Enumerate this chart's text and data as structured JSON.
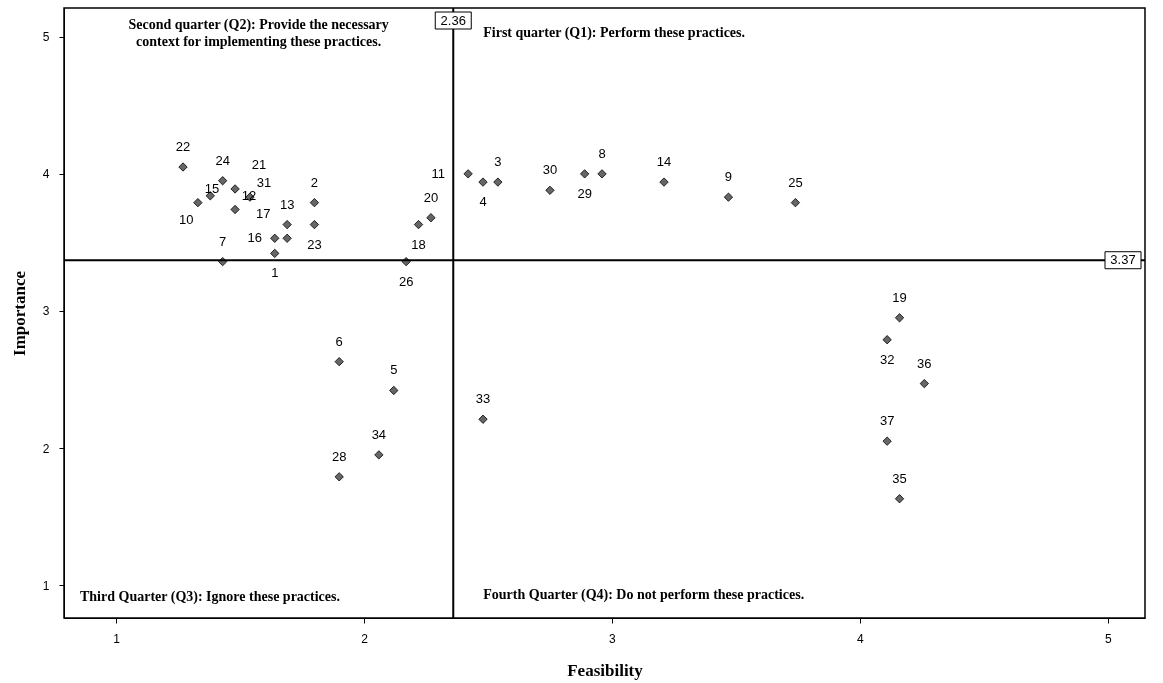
{
  "chart_data": {
    "type": "scatter",
    "xlabel": "Feasibility",
    "ylabel": "Importance",
    "xlim": [
      0.79,
      5.15
    ],
    "ylim": [
      0.76,
      5.21
    ],
    "xticks": [
      1,
      2,
      3,
      4,
      5
    ],
    "yticks": [
      1,
      2,
      3,
      4,
      5
    ],
    "grid": false,
    "marker": "diamond",
    "series": [
      {
        "color": "#666666",
        "x": [
          1.64,
          1.8,
          2.54,
          2.48,
          2.12,
          1.9,
          1.43,
          2.96,
          3.47,
          1.38,
          2.42,
          1.48,
          1.69,
          3.21,
          1.33,
          1.64,
          1.69,
          2.22,
          4.16,
          2.27,
          1.48,
          1.27,
          1.8,
          1.43,
          3.74,
          2.17,
          1.9,
          2.89,
          2.75,
          1.54,
          4.11,
          2.48,
          2.06,
          4.16,
          4.26,
          4.11
        ],
        "values": [
          3.42,
          3.79,
          3.94,
          3.94,
          2.42,
          2.63,
          3.36,
          4.0,
          3.83,
          3.84,
          4.0,
          3.74,
          3.63,
          3.94,
          3.79,
          3.53,
          3.53,
          3.63,
          2.95,
          3.68,
          3.89,
          4.05,
          3.63,
          3.95,
          3.79,
          3.36,
          1.79,
          4.0,
          3.88,
          3.83,
          2.79,
          2.21,
          1.95,
          1.63,
          2.47,
          2.05
        ]
      }
    ],
    "ref_lines": [
      {
        "axis": "x",
        "value": 2.36,
        "label": "2.36"
      },
      {
        "axis": "y",
        "value": 3.37,
        "label": "3.37"
      }
    ],
    "annotations": [
      "Second quarter (Q2): Provide the necessary context for implementing these practices.",
      "First quarter (Q1): Perform these practices.",
      "Third Quarter (Q3): Ignore these practices.",
      "Fourth Quarter (Q4): Do not perform these practices.",
      {
        "text": "1",
        "x": 1.64,
        "y": 3.42
      },
      {
        "text": "2",
        "x": 1.8,
        "y": 3.79
      },
      {
        "text": "3",
        "x": 2.54,
        "y": 3.94
      },
      {
        "text": "4",
        "x": 2.48,
        "y": 3.94
      },
      {
        "text": "5",
        "x": 2.12,
        "y": 2.42
      },
      {
        "text": "6",
        "x": 1.9,
        "y": 2.63
      },
      {
        "text": "7",
        "x": 1.43,
        "y": 3.36
      },
      {
        "text": "8",
        "x": 2.96,
        "y": 4.0
      },
      {
        "text": "9",
        "x": 3.47,
        "y": 3.83
      },
      {
        "text": "10",
        "x": 1.38,
        "y": 3.84
      },
      {
        "text": "11",
        "x": 2.42,
        "y": 4.0
      },
      {
        "text": "12",
        "x": 1.48,
        "y": 3.74
      },
      {
        "text": "13",
        "x": 1.69,
        "y": 3.63
      },
      {
        "text": "14",
        "x": 3.21,
        "y": 3.94
      },
      {
        "text": "15",
        "x": 1.33,
        "y": 3.79
      },
      {
        "text": "16",
        "x": 1.64,
        "y": 3.53
      },
      {
        "text": "17",
        "x": 1.69,
        "y": 3.53
      },
      {
        "text": "18",
        "x": 2.22,
        "y": 3.63
      },
      {
        "text": "19",
        "x": 4.16,
        "y": 2.95
      },
      {
        "text": "20",
        "x": 2.27,
        "y": 3.68
      },
      {
        "text": "21",
        "x": 1.48,
        "y": 3.89
      },
      {
        "text": "22",
        "x": 1.27,
        "y": 4.05
      },
      {
        "text": "23",
        "x": 1.8,
        "y": 3.63
      },
      {
        "text": "24",
        "x": 1.43,
        "y": 3.95
      },
      {
        "text": "25",
        "x": 3.74,
        "y": 3.79
      },
      {
        "text": "26",
        "x": 2.17,
        "y": 3.36
      },
      {
        "text": "28",
        "x": 1.9,
        "y": 1.79
      },
      {
        "text": "29",
        "x": 2.89,
        "y": 4.0
      },
      {
        "text": "30",
        "x": 2.75,
        "y": 3.88
      },
      {
        "text": "31",
        "x": 1.54,
        "y": 3.83
      },
      {
        "text": "32",
        "x": 4.11,
        "y": 2.79
      },
      {
        "text": "33",
        "x": 2.48,
        "y": 2.21
      },
      {
        "text": "34",
        "x": 2.06,
        "y": 1.95
      },
      {
        "text": "35",
        "x": 4.16,
        "y": 1.63
      },
      {
        "text": "36",
        "x": 4.26,
        "y": 2.47
      },
      {
        "text": "37",
        "x": 4.11,
        "y": 2.05
      }
    ]
  }
}
